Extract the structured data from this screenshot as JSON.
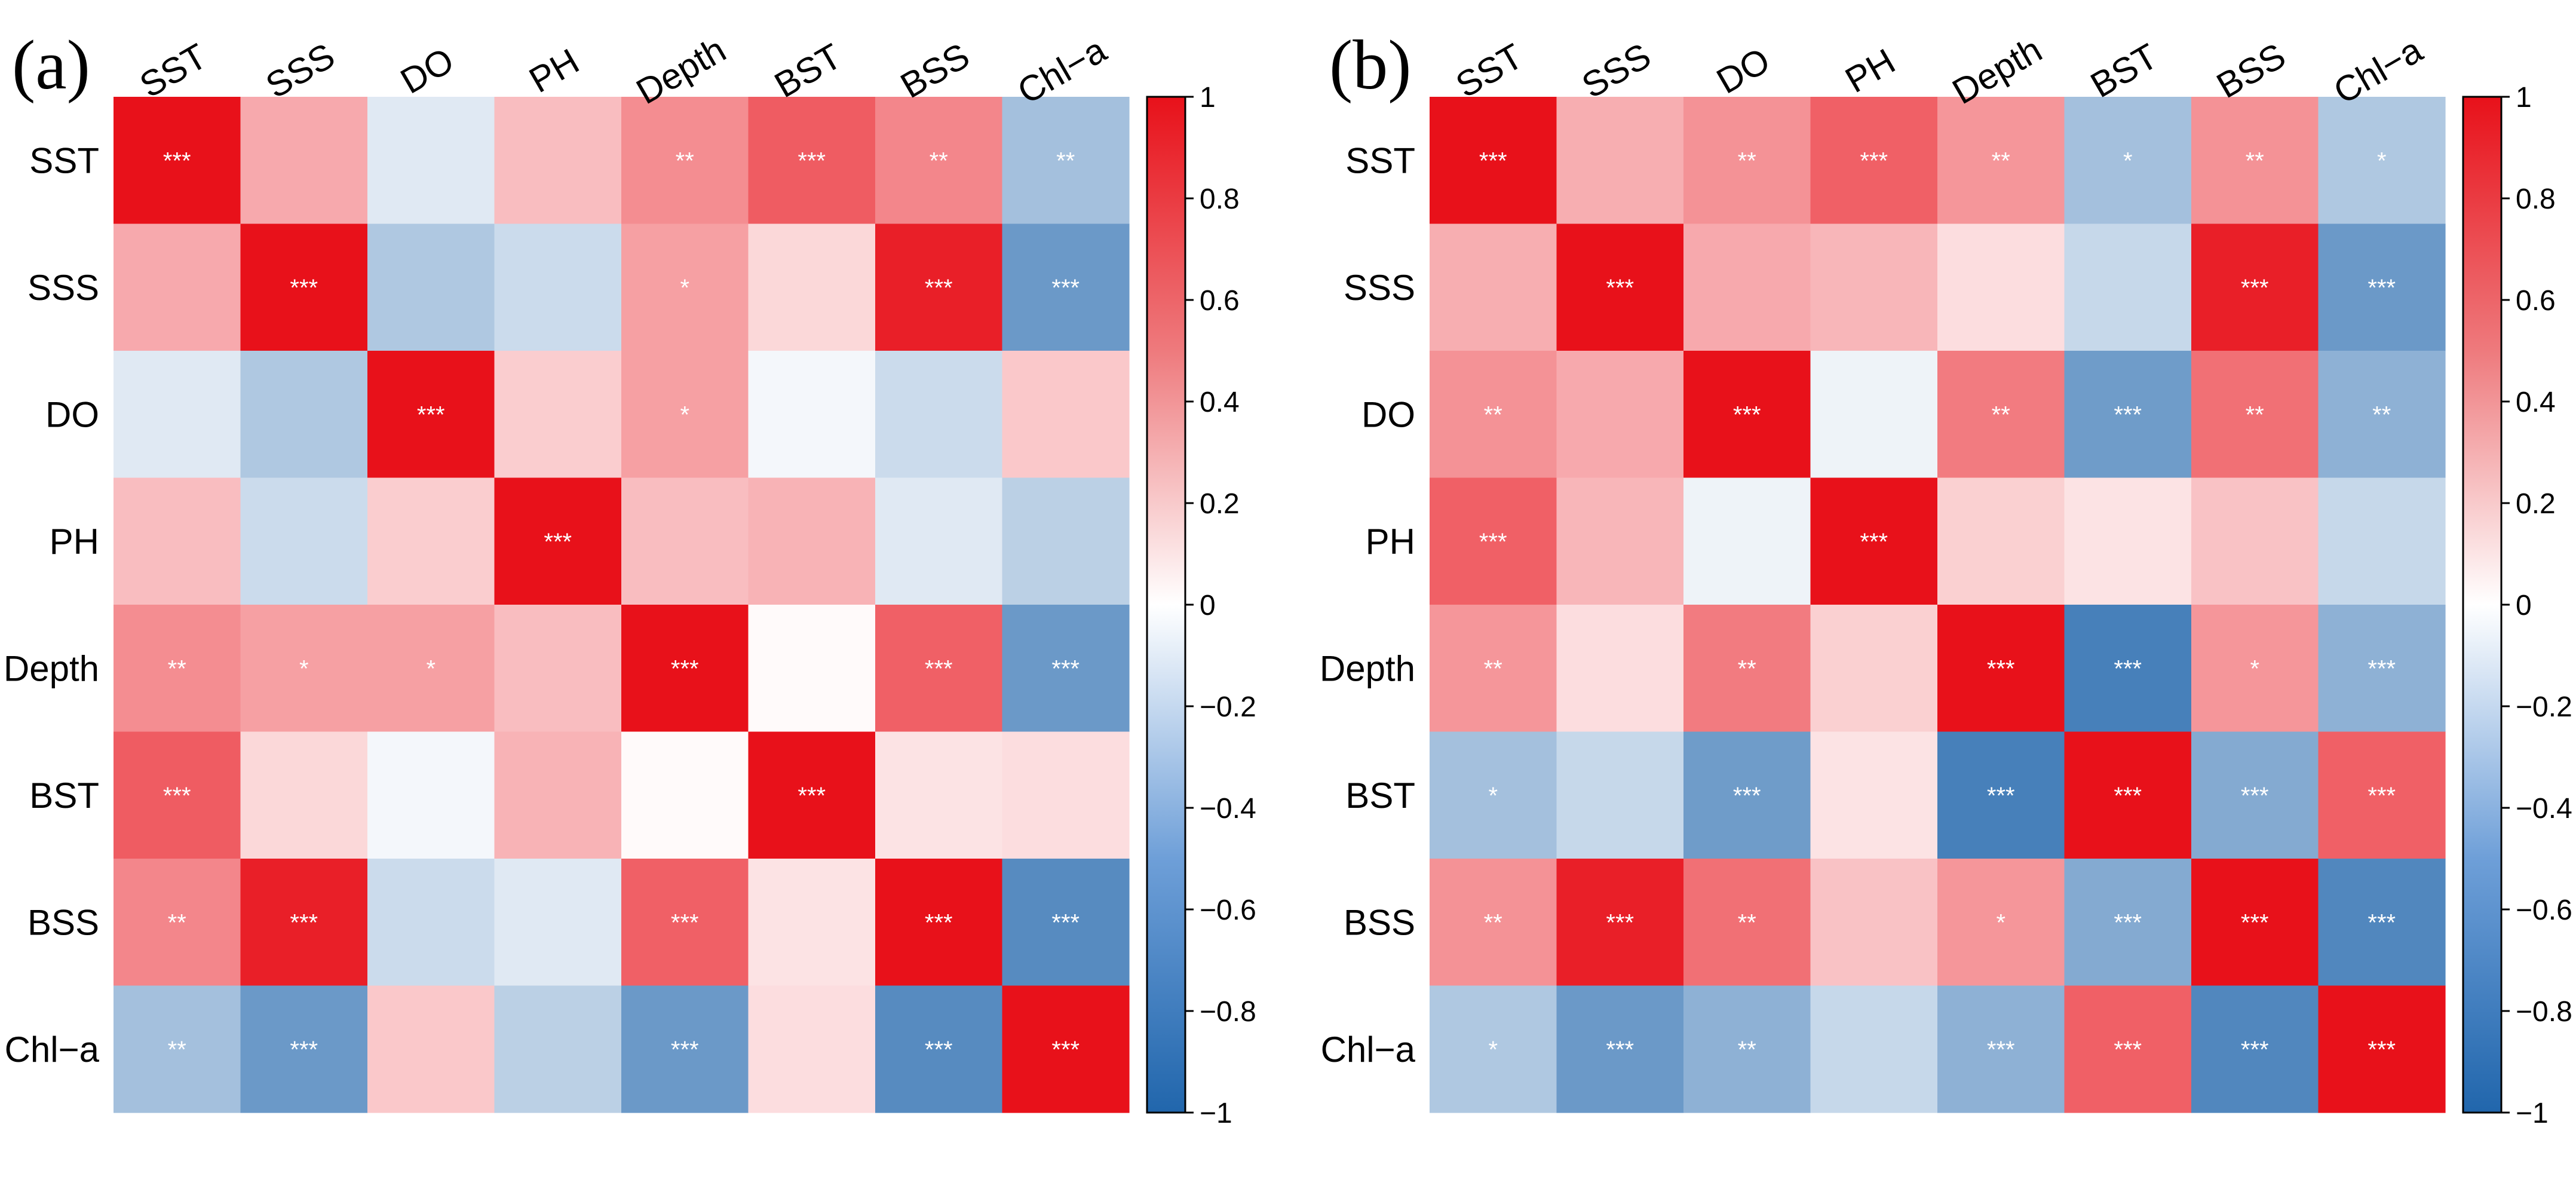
{
  "chart_data": [
    {
      "type": "heatmap",
      "panel_label": "(a)",
      "variables": [
        "SST",
        "SSS",
        "DO",
        "PH",
        "Depth",
        "BST",
        "BSS",
        "Chl−a"
      ],
      "values": [
        [
          1.0,
          0.3,
          -0.1,
          0.22,
          0.42,
          0.64,
          0.45,
          -0.35
        ],
        [
          0.3,
          1.0,
          -0.3,
          -0.18,
          0.34,
          0.12,
          0.93,
          -0.62
        ],
        [
          -0.1,
          -0.3,
          1.0,
          0.16,
          0.34,
          -0.03,
          -0.18,
          0.18
        ],
        [
          0.22,
          -0.18,
          0.16,
          1.0,
          0.22,
          0.26,
          -0.1,
          -0.25
        ],
        [
          0.42,
          0.34,
          0.34,
          0.22,
          1.0,
          0.01,
          0.62,
          -0.62
        ],
        [
          0.64,
          0.12,
          -0.03,
          0.26,
          0.01,
          1.0,
          0.08,
          0.1
        ],
        [
          0.45,
          0.93,
          -0.18,
          -0.1,
          0.62,
          0.08,
          1.0,
          -0.72
        ],
        [
          -0.35,
          -0.62,
          0.18,
          -0.25,
          -0.62,
          0.1,
          -0.72,
          1.0
        ]
      ],
      "significance": [
        [
          "***",
          "",
          "",
          "",
          "**",
          "***",
          "**",
          "**"
        ],
        [
          "",
          "***",
          "",
          "",
          "*",
          "",
          "***",
          "***"
        ],
        [
          "",
          "",
          "***",
          "",
          "*",
          "",
          "",
          ""
        ],
        [
          "",
          "",
          "",
          "***",
          "",
          "",
          "",
          ""
        ],
        [
          "**",
          "*",
          "*",
          "",
          "***",
          "",
          "***",
          "***"
        ],
        [
          "***",
          "",
          "",
          "",
          "",
          "***",
          "",
          ""
        ],
        [
          "**",
          "***",
          "",
          "",
          "***",
          "",
          "***",
          "***"
        ],
        [
          "**",
          "***",
          "",
          "",
          "***",
          "",
          "***",
          "***"
        ]
      ],
      "colorbar": {
        "range": [
          -1,
          1
        ],
        "ticks": [
          1,
          0.8,
          0.6,
          0.4,
          0.2,
          0,
          -0.2,
          -0.4,
          -0.6,
          -0.8,
          -1
        ],
        "tick_labels": [
          "1",
          "0.8",
          "0.6",
          "0.4",
          "0.2",
          "0",
          "−0.2",
          "−0.4",
          "−0.6",
          "−0.8",
          "−1"
        ],
        "colors": {
          "negative": "#2166ac",
          "zero": "#ffffff",
          "positive": "#e8111a"
        }
      }
    },
    {
      "type": "heatmap",
      "panel_label": "(b)",
      "variables": [
        "SST",
        "SSS",
        "DO",
        "PH",
        "Depth",
        "BST",
        "BSS",
        "Chl−a"
      ],
      "values": [
        [
          1.0,
          0.28,
          0.4,
          0.62,
          0.38,
          -0.35,
          0.4,
          -0.3
        ],
        [
          0.28,
          1.0,
          0.3,
          0.25,
          0.1,
          -0.2,
          0.93,
          -0.62
        ],
        [
          0.4,
          0.3,
          1.0,
          -0.05,
          0.5,
          -0.6,
          0.55,
          -0.45
        ],
        [
          0.62,
          0.25,
          -0.05,
          1.0,
          0.15,
          0.08,
          0.2,
          -0.2
        ],
        [
          0.38,
          0.1,
          0.5,
          0.15,
          1.0,
          -0.8,
          0.38,
          -0.45
        ],
        [
          -0.35,
          -0.2,
          -0.6,
          0.08,
          -0.8,
          1.0,
          -0.5,
          0.62
        ],
        [
          0.4,
          0.93,
          0.55,
          0.2,
          0.38,
          -0.5,
          1.0,
          -0.75
        ],
        [
          -0.3,
          -0.62,
          -0.45,
          -0.2,
          -0.45,
          0.62,
          -0.75,
          1.0
        ]
      ],
      "significance": [
        [
          "***",
          "",
          "**",
          "***",
          "**",
          "*",
          "**",
          "*"
        ],
        [
          "",
          "***",
          "",
          "",
          "",
          "",
          "***",
          "***"
        ],
        [
          "**",
          "",
          "***",
          "",
          "**",
          "***",
          "**",
          "**"
        ],
        [
          "***",
          "",
          "",
          "***",
          "",
          "",
          "",
          ""
        ],
        [
          "**",
          "",
          "**",
          "",
          "***",
          "***",
          "*",
          "***"
        ],
        [
          "*",
          "",
          "***",
          "",
          "***",
          "***",
          "***",
          "***"
        ],
        [
          "**",
          "***",
          "**",
          "",
          "*",
          "***",
          "***",
          "***"
        ],
        [
          "*",
          "***",
          "**",
          "",
          "***",
          "***",
          "***",
          "***"
        ]
      ],
      "colorbar": {
        "range": [
          -1,
          1
        ],
        "ticks": [
          1,
          0.8,
          0.6,
          0.4,
          0.2,
          0,
          -0.2,
          -0.4,
          -0.6,
          -0.8,
          -1
        ],
        "tick_labels": [
          "1",
          "0.8",
          "0.6",
          "0.4",
          "0.2",
          "0",
          "−0.2",
          "−0.4",
          "−0.6",
          "−0.8",
          "−1"
        ],
        "colors": {
          "negative": "#2166ac",
          "zero": "#ffffff",
          "positive": "#e8111a"
        }
      }
    }
  ]
}
